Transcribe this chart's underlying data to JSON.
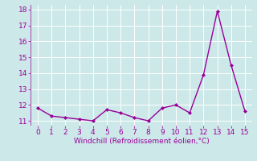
{
  "x": [
    0,
    1,
    2,
    3,
    4,
    5,
    6,
    7,
    8,
    9,
    10,
    11,
    12,
    13,
    14,
    15
  ],
  "y": [
    11.8,
    11.3,
    11.2,
    11.1,
    11.0,
    11.7,
    11.5,
    11.2,
    11.0,
    11.8,
    12.0,
    11.5,
    13.9,
    17.9,
    14.5,
    11.6
  ],
  "line_color": "#990099",
  "marker": "D",
  "marker_size": 2.0,
  "xlabel": "Windchill (Refroidissement éolien,°C)",
  "xlim": [
    -0.5,
    15.5
  ],
  "ylim": [
    10.7,
    18.3
  ],
  "yticks": [
    11,
    12,
    13,
    14,
    15,
    16,
    17,
    18
  ],
  "xticks": [
    0,
    1,
    2,
    3,
    4,
    5,
    6,
    7,
    8,
    9,
    10,
    11,
    12,
    13,
    14,
    15
  ],
  "bg_color": "#cce8e8",
  "grid_color": "#b8d8d8",
  "tick_color": "#990099",
  "label_color": "#990099",
  "linewidth": 1.0,
  "tick_fontsize": 6.5,
  "xlabel_fontsize": 6.5
}
